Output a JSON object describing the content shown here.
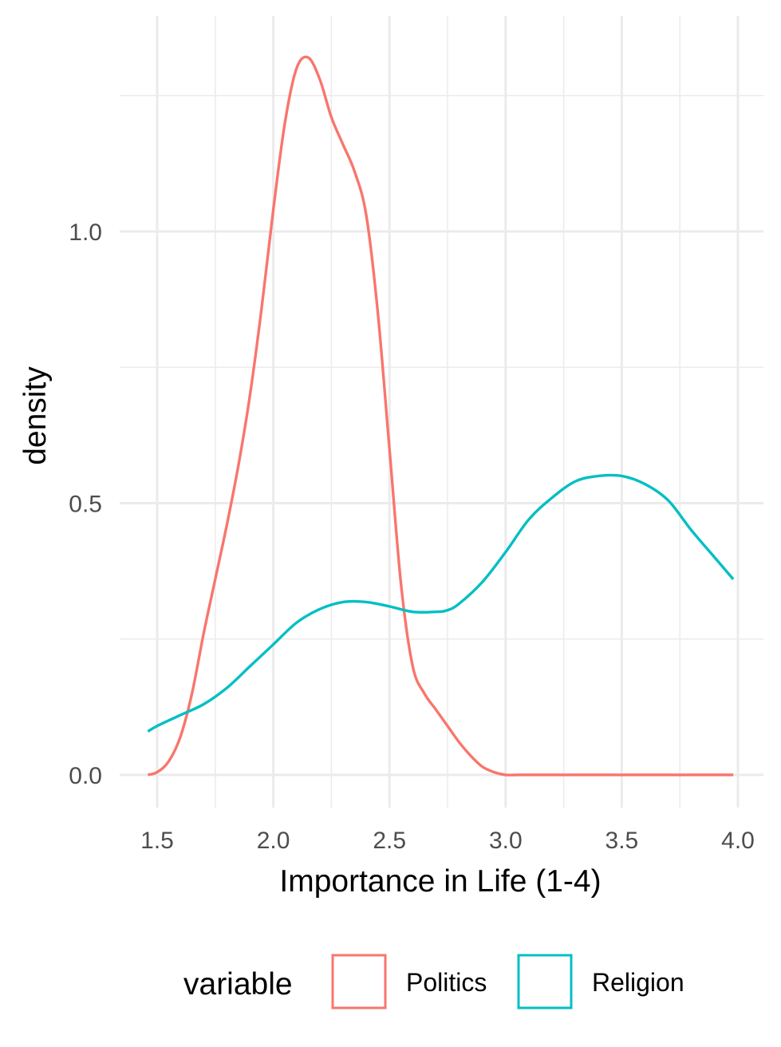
{
  "chart_data": {
    "type": "line",
    "title": "",
    "xlabel": "Importance in Life (1-4)",
    "ylabel": "density",
    "xlim": [
      1.41,
      4.05
    ],
    "ylim": [
      -0.06,
      1.33
    ],
    "x_ticks": [
      1.5,
      2.0,
      2.5,
      3.0,
      3.5,
      4.0
    ],
    "x_tick_labels": [
      "1.5",
      "2.0",
      "2.5",
      "3.0",
      "3.5",
      "4.0"
    ],
    "y_ticks": [
      0.0,
      0.5,
      1.0
    ],
    "y_tick_labels": [
      "0.0",
      "0.5",
      "1.0"
    ],
    "grid": true,
    "legend": {
      "title": "variable",
      "position": "bottom"
    },
    "series": [
      {
        "name": "Politics",
        "color": "#F8766D",
        "x": [
          1.46,
          1.5,
          1.55,
          1.6,
          1.65,
          1.7,
          1.75,
          1.8,
          1.85,
          1.9,
          1.95,
          2.0,
          2.05,
          2.1,
          2.15,
          2.2,
          2.25,
          2.3,
          2.35,
          2.4,
          2.45,
          2.5,
          2.55,
          2.6,
          2.65,
          2.7,
          2.75,
          2.8,
          2.85,
          2.9,
          2.95,
          3.0,
          3.05,
          3.1,
          3.15,
          3.2,
          3.25,
          3.3,
          3.4,
          3.5,
          3.6,
          3.7,
          3.8,
          3.9,
          3.98
        ],
        "y": [
          0.0,
          0.005,
          0.025,
          0.07,
          0.15,
          0.26,
          0.36,
          0.46,
          0.57,
          0.7,
          0.86,
          1.04,
          1.2,
          1.3,
          1.32,
          1.28,
          1.21,
          1.16,
          1.11,
          1.03,
          0.85,
          0.6,
          0.35,
          0.2,
          0.15,
          0.12,
          0.09,
          0.06,
          0.035,
          0.015,
          0.005,
          0.0,
          0.0,
          0.0,
          0.0,
          0.0,
          0.0,
          0.0,
          0.0,
          0.0,
          0.0,
          0.0,
          0.0,
          0.0,
          0.0
        ]
      },
      {
        "name": "Religion",
        "color": "#00BFC4",
        "x": [
          1.46,
          1.5,
          1.6,
          1.7,
          1.8,
          1.9,
          2.0,
          2.1,
          2.2,
          2.3,
          2.4,
          2.5,
          2.6,
          2.7,
          2.75,
          2.8,
          2.9,
          3.0,
          3.1,
          3.2,
          3.3,
          3.4,
          3.5,
          3.6,
          3.7,
          3.8,
          3.9,
          3.98
        ],
        "y": [
          0.08,
          0.09,
          0.11,
          0.13,
          0.16,
          0.2,
          0.24,
          0.28,
          0.305,
          0.318,
          0.318,
          0.31,
          0.3,
          0.3,
          0.303,
          0.315,
          0.355,
          0.41,
          0.47,
          0.51,
          0.54,
          0.55,
          0.55,
          0.535,
          0.505,
          0.45,
          0.4,
          0.36
        ]
      }
    ]
  }
}
